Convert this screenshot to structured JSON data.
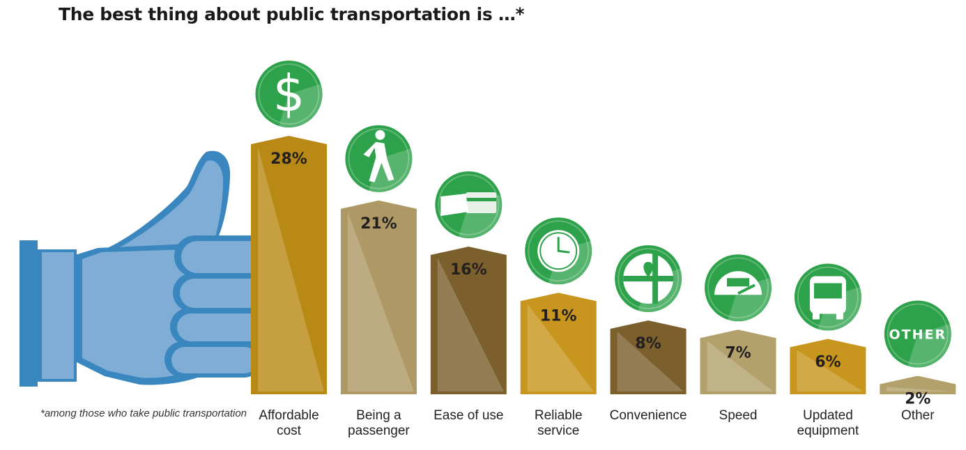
{
  "title": "The best thing about public transportation is …*",
  "footnote": "*among those who take public transportation",
  "chart_data": {
    "type": "bar",
    "title": "The best thing about public transportation is …*",
    "categories": [
      [
        "Affordable",
        "cost"
      ],
      [
        "Being a",
        "passenger"
      ],
      [
        "Ease of use"
      ],
      [
        "Reliable",
        "service"
      ],
      [
        "Convenience"
      ],
      [
        "Speed"
      ],
      [
        "Updated",
        "equipment"
      ],
      [
        "Other"
      ]
    ],
    "values": [
      28,
      21,
      16,
      11,
      8,
      7,
      6,
      2
    ],
    "value_labels": [
      "28%",
      "21%",
      "16%",
      "11%",
      "8%",
      "7%",
      "6%",
      "2%"
    ],
    "unit": "%",
    "icons": [
      "dollar-icon",
      "walking-person-icon",
      "card-payment-icon",
      "clock-icon",
      "map-pin-icon",
      "speedometer-icon",
      "bus-icon",
      "other-icon"
    ],
    "other_icon_text": "OTHER",
    "bar_colors": [
      "#b98916",
      "#ae9966",
      "#7b5f2c",
      "#c8951e",
      "#7b5f2c",
      "#b3a16c",
      "#c8951e",
      "#b3a16c"
    ],
    "icon_color": "#2ea24a",
    "hand_color": "#7fadd6",
    "hand_outline_color": "#3a86bf",
    "ylim": [
      0,
      30
    ],
    "grid": false,
    "legend": "none"
  }
}
